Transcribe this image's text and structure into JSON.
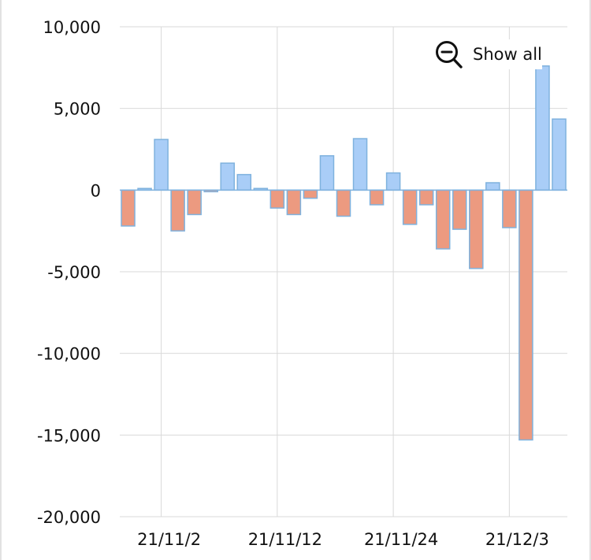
{
  "show_all_button": {
    "label": "Show all",
    "icon": "zoom-out-icon"
  },
  "colors": {
    "positive_fill": "#a9cdf7",
    "negative_fill": "#ec9a80",
    "bar_stroke": "#7fb2de",
    "grid": "#d9d9d9",
    "zero_line": "#7fb2de"
  },
  "chart_data": {
    "type": "bar",
    "ylim": [
      -20000,
      10000
    ],
    "y_ticks": [
      10000,
      5000,
      0,
      -5000,
      -10000,
      -15000,
      -20000
    ],
    "y_tick_labels": [
      "10,000",
      "5,000",
      "0",
      "-5,000",
      "-10,000",
      "-15,000",
      "-20,000"
    ],
    "x_tick_labels": [
      "21/11/2",
      "21/11/12",
      "21/11/24",
      "21/12/3"
    ],
    "x_tick_bar_index": [
      2,
      9,
      16,
      23
    ],
    "grid": true,
    "legend": "none",
    "values": [
      -2200,
      100,
      3100,
      -2500,
      -1500,
      -100,
      1650,
      950,
      100,
      -1100,
      -1500,
      -500,
      2100,
      -1600,
      3150,
      -900,
      1050,
      -2100,
      -900,
      -3600,
      -2400,
      -4800,
      450,
      -2300,
      -15300,
      7600,
      4350
    ]
  }
}
